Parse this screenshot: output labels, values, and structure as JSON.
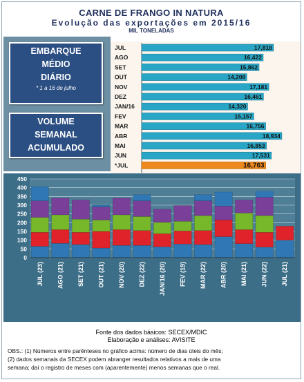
{
  "header": {
    "title": "CARNE DE FRANGO IN NATURA",
    "subtitle": "Evolução das exportações em 2015/16",
    "unit": "MIL TONELADAS"
  },
  "callouts": {
    "daily_line1": "EMBARQUE",
    "daily_line2": "MÉDIO",
    "daily_line3": "DIÁRIO",
    "daily_note": "* 1 a 16 de julho",
    "weekly_line1": "VOLUME",
    "weekly_line2": "SEMANAL",
    "weekly_line3": "ACUMULADO"
  },
  "colors": {
    "hbar": "#29a6c6",
    "hbar_highlight": "#f0891d",
    "vbar_bg": "#4f7f97",
    "seg1": "#2f78b5",
    "seg2": "#e0232a",
    "seg3": "#76b82a",
    "seg4": "#7a3f98"
  },
  "chart_data": [
    {
      "type": "bar",
      "orientation": "horizontal",
      "categories": [
        "JUL",
        "AGO",
        "SET",
        "OUT",
        "NOV",
        "DEZ",
        "JAN/16",
        "FEV",
        "MAR",
        "ABR",
        "MAI",
        "JUN",
        "*JUL"
      ],
      "values": [
        17.818,
        16.422,
        15.862,
        14.208,
        17.181,
        16.461,
        14.32,
        15.157,
        16.756,
        18.934,
        16.853,
        17.531,
        16.763
      ],
      "labels": [
        "17,818",
        "16,422",
        "15,862",
        "14,208",
        "17,181",
        "16,461",
        "14,320",
        "15,157",
        "16,756",
        "18,934",
        "16,853",
        "17,531",
        "16,763"
      ],
      "highlight": "*JUL"
    },
    {
      "type": "bar",
      "stacked": true,
      "categories": [
        "JUL (23)",
        "AGO (21)",
        "SET (21)",
        "OUT (21)",
        "NOV (20)",
        "DEZ (22)",
        "JAN/16 (20)",
        "FEV (19)",
        "MAR (22)",
        "ABR (20)",
        "MAI (21)",
        "JUN (22)",
        "JUL (21)"
      ],
      "series": [
        {
          "values": [
            65,
            82,
            75,
            55,
            70,
            70,
            62,
            78,
            75,
            120,
            80,
            60,
            100
          ]
        },
        {
          "values": [
            80,
            78,
            70,
            95,
            90,
            85,
            75,
            75,
            80,
            95,
            80,
            85,
            80
          ]
        },
        {
          "values": [
            85,
            85,
            75,
            65,
            85,
            80,
            65,
            55,
            85,
            0,
            95,
            95,
            0
          ]
        },
        {
          "values": [
            95,
            95,
            110,
            75,
            95,
            90,
            75,
            90,
            85,
            80,
            75,
            105,
            0
          ]
        },
        {
          "values": [
            80,
            0,
            0,
            10,
            0,
            35,
            0,
            0,
            35,
            80,
            0,
            35,
            0
          ]
        }
      ],
      "ylim": [
        0,
        450
      ],
      "yticks": [
        0,
        50,
        100,
        150,
        200,
        250,
        300,
        350,
        400,
        450
      ],
      "grid": true
    }
  ],
  "footer": {
    "source": "Fonte dos dados básicos: SECEX/MDIC",
    "analysis": "Elaboração e análises: AVISITE",
    "obs_line1": "OBS.: (1) Números entre parênteses no gráfico acima: número de dias úteis do mês;",
    "obs_line2": "(2) dados semanais da SECEX podem abranger resultados relativos a mais de uma",
    "obs_line3": "semana; daí o registro de meses com (aparentemente) menos semanas que o real."
  }
}
